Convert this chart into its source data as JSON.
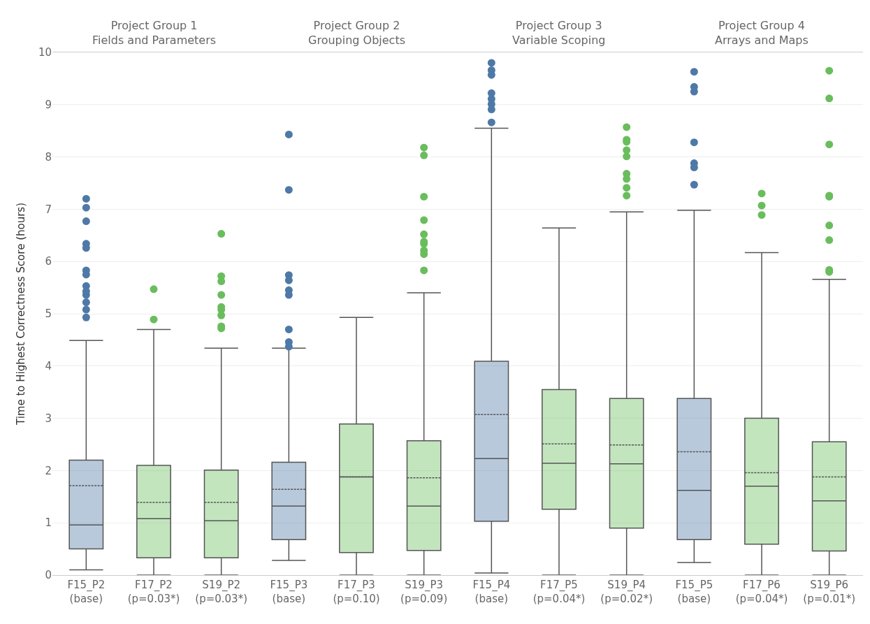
{
  "chart_data": [
    {
      "type": "box",
      "title": "Project Group 1",
      "subtitle": "Fields and Parameters",
      "ylabel": "Time to Highest Correctness Score (hours)",
      "categories": [
        "F15_P2\n(base)",
        "F17_P2\n(p=0.03*)",
        "S19_P2\n(p=0.03*)"
      ],
      "colors": [
        "#4e79a7",
        "#6abd5d",
        "#6abd5d"
      ],
      "boxes": [
        {
          "low": 0.1,
          "q1": 0.5,
          "median": 0.96,
          "q3": 2.2,
          "high": 4.49,
          "mean": 1.71,
          "outliers": [
            7.2,
            7.03,
            6.77,
            6.34,
            6.26,
            5.83,
            5.75,
            5.53,
            5.43,
            5.36,
            5.22,
            5.08,
            4.93
          ]
        },
        {
          "low": 0,
          "q1": 0.33,
          "median": 1.08,
          "q3": 2.1,
          "high": 4.7,
          "mean": 1.39,
          "outliers": [
            5.47,
            4.89
          ]
        },
        {
          "low": 0,
          "q1": 0.33,
          "median": 1.04,
          "q3": 2.01,
          "high": 4.34,
          "mean": 1.39,
          "outliers": [
            6.53,
            5.72,
            5.62,
            5.36,
            5.13,
            5.08,
            4.97,
            4.76,
            4.72
          ]
        }
      ],
      "ylim": [
        0,
        10
      ],
      "yticks": [
        0,
        1,
        2,
        3,
        4,
        5,
        6,
        7,
        8,
        9,
        10
      ],
      "grid": "y"
    },
    {
      "type": "box",
      "title": "Project Group 2",
      "subtitle": "Grouping Objects",
      "categories": [
        "F15_P3\n(base)",
        "F17_P3\n(p=0.10)",
        "S19_P3\n(p=0.09)"
      ],
      "colors": [
        "#4e79a7",
        "#6abd5d",
        "#6abd5d"
      ],
      "boxes": [
        {
          "low": 0.28,
          "q1": 0.68,
          "median": 1.32,
          "q3": 2.16,
          "high": 4.34,
          "mean": 1.64,
          "outliers": [
            8.43,
            7.37,
            5.74,
            5.64,
            5.45,
            5.36,
            4.7,
            4.46,
            4.37
          ]
        },
        {
          "low": 0,
          "q1": 0.43,
          "median": 1.88,
          "q3": 2.89,
          "high": 4.93,
          "mean": 1.88
        },
        {
          "low": 0,
          "q1": 0.47,
          "median": 1.32,
          "q3": 2.57,
          "high": 5.4,
          "mean": 1.86,
          "outliers": [
            8.18,
            8.03,
            7.24,
            6.79,
            6.52,
            6.38,
            6.34,
            6.21,
            6.14,
            5.83
          ]
        }
      ],
      "ylim": [
        0,
        10
      ],
      "yticks": [
        0,
        1,
        2,
        3,
        4,
        5,
        6,
        7,
        8,
        9,
        10
      ],
      "grid": "y",
      "tick_labels": "x"
    },
    {
      "type": "box",
      "title": "Project Group 3",
      "subtitle": "Variable Scoping",
      "categories": [
        "F15_P4\n(base)",
        "F17_P5\n(p=0.04*)",
        "S19_P4\n(p=0.02*)"
      ],
      "colors": [
        "#4e79a7",
        "#6abd5d",
        "#6abd5d"
      ],
      "boxes": [
        {
          "low": 0.04,
          "q1": 1.03,
          "median": 2.23,
          "q3": 4.09,
          "high": 8.55,
          "mean": 3.07,
          "outliers": [
            9.8,
            9.66,
            9.57,
            9.22,
            9.11,
            9.01,
            8.91,
            8.66
          ]
        },
        {
          "low": 0,
          "q1": 1.26,
          "median": 2.14,
          "q3": 3.55,
          "high": 6.64,
          "mean": 2.51
        },
        {
          "low": 0,
          "q1": 0.9,
          "median": 2.13,
          "q3": 3.38,
          "high": 6.95,
          "mean": 2.49,
          "outliers": [
            8.57,
            8.33,
            8.29,
            8.13,
            8.01,
            7.68,
            7.58,
            7.41,
            7.26
          ]
        }
      ],
      "ylim": [
        0,
        10
      ],
      "yticks": [
        0,
        1,
        2,
        3,
        4,
        5,
        6,
        7,
        8,
        9,
        10
      ],
      "grid": "y",
      "tick_labels": "x"
    },
    {
      "type": "box",
      "title": "Project Group 4",
      "subtitle": "Arrays and Maps",
      "categories": [
        "F15_P5\n(base)",
        "F17_P6\n(p=0.04*)",
        "S19_P6\n(p=0.01*)"
      ],
      "colors": [
        "#4e79a7",
        "#6abd5d",
        "#6abd5d"
      ],
      "boxes": [
        {
          "low": 0.24,
          "q1": 0.68,
          "median": 1.62,
          "q3": 3.38,
          "high": 6.98,
          "mean": 2.36,
          "outliers": [
            9.63,
            9.34,
            9.25,
            8.28,
            7.88,
            7.8,
            7.47
          ]
        },
        {
          "low": 0,
          "q1": 0.59,
          "median": 1.7,
          "q3": 3.0,
          "high": 6.17,
          "mean": 1.96,
          "outliers": [
            7.3,
            7.07,
            6.89
          ]
        },
        {
          "low": 0,
          "q1": 0.46,
          "median": 1.42,
          "q3": 2.55,
          "high": 5.66,
          "mean": 1.88,
          "outliers": [
            9.65,
            9.12,
            8.24,
            7.26,
            7.24,
            6.69,
            6.41,
            5.84,
            5.8
          ]
        }
      ],
      "ylim": [
        0,
        10
      ],
      "yticks": [
        0,
        1,
        2,
        3,
        4,
        5,
        6,
        7,
        8,
        9,
        10
      ],
      "grid": "y",
      "tick_labels": "x"
    }
  ]
}
